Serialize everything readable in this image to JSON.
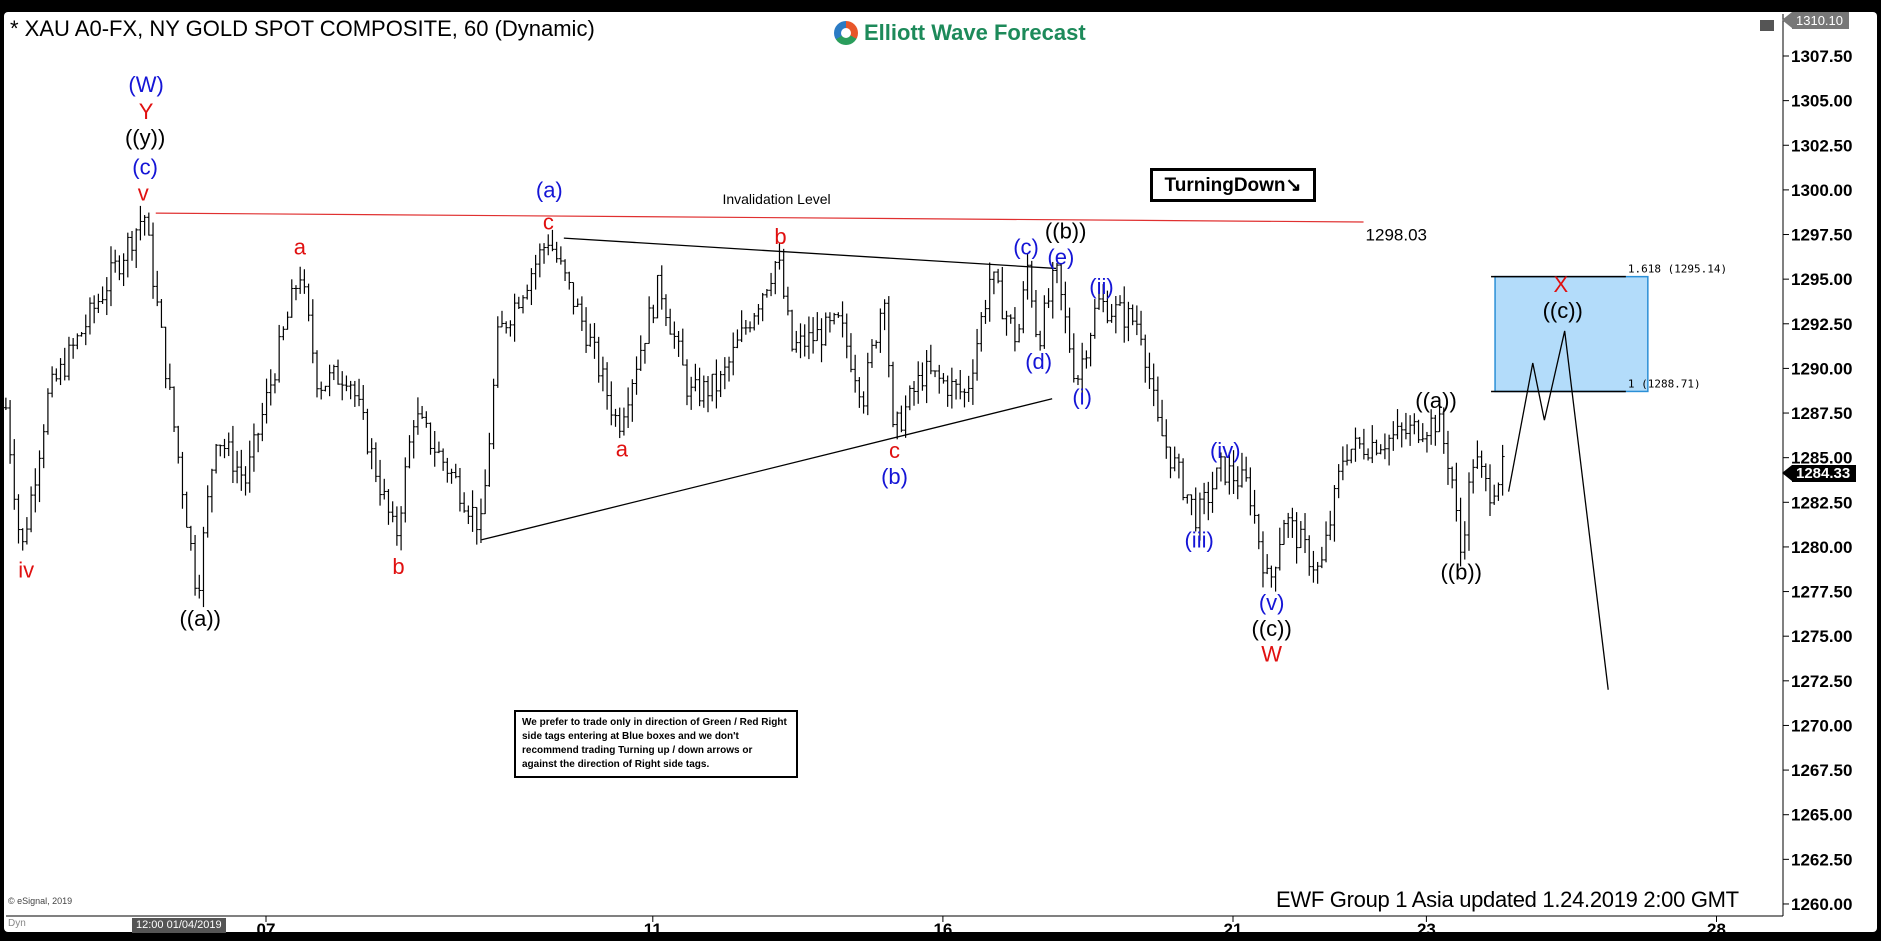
{
  "header": {
    "title": "* XAU A0-FX, NY GOLD SPOT COMPOSITE, 60 (Dynamic)",
    "logo": "Elliott Wave Forecast"
  },
  "turning_tag": "TurningDown↘",
  "note": "We prefer to trade only in direction of Green / Red Right side tags entering at Blue boxes and we don't recommend trading Turning up / down arrows or against the direction of Right side tags.",
  "footer": "EWF Group  1 Asia  updated 1.24.2019 2:00 GMT",
  "copyright": "© eSignal, 2019",
  "dyn_label": "Dyn",
  "time_tag": "12:00 01/04/2019",
  "current_price": "1284.33",
  "top_price": "1310.10",
  "colors": {
    "blue": "#1515d6",
    "red": "#e01010",
    "black": "#000000",
    "box": "#b3dcfa",
    "box_border": "#2b8fd6",
    "invalidation": "#e03030"
  },
  "chart_data": {
    "type": "ohlc",
    "title": "* XAU A0-FX, NY GOLD SPOT COMPOSITE, 60 (Dynamic)",
    "x_unit": "trading days from Jan 7",
    "x_ticks": [
      {
        "t": 0,
        "label": "07"
      },
      {
        "t": 4,
        "label": "11"
      },
      {
        "t": 7,
        "label": "16"
      },
      {
        "t": 10,
        "label": "21"
      },
      {
        "t": 12,
        "label": "23"
      },
      {
        "t": 15,
        "label": "28"
      }
    ],
    "y_ticks": [
      "1307.50",
      "1305.00",
      "1302.50",
      "1300.00",
      "1297.50",
      "1295.00",
      "1292.50",
      "1290.00",
      "1287.50",
      "1285.00",
      "1282.50",
      "1280.00",
      "1277.50",
      "1275.00",
      "1272.50",
      "1270.00",
      "1267.50",
      "1265.00",
      "1262.50",
      "1260.00"
    ],
    "ylim": [
      1258.5,
      1310.1
    ],
    "price_path": [
      [
        -2.69,
        1287.8
      ],
      [
        -2.53,
        1279.6
      ],
      [
        -2.25,
        1288.5
      ],
      [
        -1.26,
        1298.7
      ],
      [
        -0.71,
        1277.4
      ],
      [
        -0.52,
        1286.4
      ],
      [
        -0.21,
        1283.7
      ],
      [
        0.35,
        1295.5
      ],
      [
        0.54,
        1289.1
      ],
      [
        0.85,
        1289.8
      ],
      [
        1.34,
        1280.4
      ],
      [
        1.53,
        1287.4
      ],
      [
        1.96,
        1283.7
      ],
      [
        2.23,
        1281.0
      ],
      [
        2.4,
        1291.8
      ],
      [
        2.92,
        1297.3
      ],
      [
        3.33,
        1291.8
      ],
      [
        3.64,
        1286.8
      ],
      [
        4.07,
        1294.8
      ],
      [
        4.38,
        1288.5
      ],
      [
        4.69,
        1289.1
      ],
      [
        5.29,
        1296.2
      ],
      [
        5.44,
        1291.1
      ],
      [
        5.93,
        1292.5
      ],
      [
        6.18,
        1288.5
      ],
      [
        6.41,
        1294.8
      ],
      [
        6.47,
        1286.1
      ],
      [
        6.8,
        1289.8
      ],
      [
        7.24,
        1288.5
      ],
      [
        7.49,
        1295.2
      ],
      [
        7.77,
        1291.5
      ],
      [
        7.88,
        1295.9
      ],
      [
        7.98,
        1291.5
      ],
      [
        8.17,
        1295.4
      ],
      [
        8.38,
        1289.3
      ],
      [
        8.6,
        1293.7
      ],
      [
        9.04,
        1292.5
      ],
      [
        9.22,
        1286.8
      ],
      [
        9.63,
        1281.6
      ],
      [
        9.88,
        1284.4
      ],
      [
        10.16,
        1283.4
      ],
      [
        10.37,
        1277.7
      ],
      [
        10.53,
        1281.7
      ],
      [
        10.9,
        1278.5
      ],
      [
        11.15,
        1285.4
      ],
      [
        11.64,
        1286.1
      ],
      [
        12.12,
        1287.1
      ],
      [
        12.26,
        1284.1
      ],
      [
        12.35,
        1279.6
      ],
      [
        12.49,
        1285.1
      ],
      [
        12.64,
        1283.1
      ],
      [
        12.79,
        1284.3
      ]
    ],
    "projection": [
      [
        12.85,
        1283.1
      ],
      [
        13.1,
        1290.3
      ],
      [
        13.22,
        1287.1
      ],
      [
        13.43,
        1292.1
      ],
      [
        13.88,
        1272.0
      ]
    ],
    "invalidation": {
      "label": "Invalidation Level",
      "value_label": "1298.03",
      "from": [
        -1.14,
        1298.7
      ],
      "to": [
        11.35,
        1298.2
      ]
    },
    "triangle": {
      "upper": [
        [
          3.08,
          1297.3
        ],
        [
          8.17,
          1295.6
        ]
      ],
      "lower": [
        [
          2.23,
          1280.4
        ],
        [
          8.13,
          1288.3
        ]
      ]
    },
    "blue_box": {
      "t": [
        12.71,
        14.29
      ],
      "p": [
        1288.71,
        1295.14
      ],
      "upper_label": "1.618 (1295.14)",
      "lower_label": "1 (1288.71)"
    },
    "labels": [
      {
        "text": "(W)",
        "t": -1.24,
        "p": 1305.8,
        "c": "blue"
      },
      {
        "text": "Y",
        "t": -1.24,
        "p": 1304.3,
        "c": "red"
      },
      {
        "text": "((y))",
        "t": -1.25,
        "p": 1303.0,
        "c": "black"
      },
      {
        "text": "(c)",
        "t": -1.25,
        "p": 1301.2,
        "c": "blue"
      },
      {
        "text": "v",
        "t": -1.27,
        "p": 1299.9,
        "c": "red"
      },
      {
        "text": "iv",
        "t": -2.48,
        "p": 1278.6,
        "c": "red"
      },
      {
        "text": "((a))",
        "t": -0.68,
        "p": 1275.9,
        "c": "black"
      },
      {
        "text": "a",
        "t": 0.35,
        "p": 1296.7,
        "c": "red"
      },
      {
        "text": "b",
        "t": 1.37,
        "p": 1278.8,
        "c": "red"
      },
      {
        "text": "(a)",
        "t": 2.93,
        "p": 1299.9,
        "c": "blue"
      },
      {
        "text": "c",
        "t": 2.92,
        "p": 1298.1,
        "c": "red"
      },
      {
        "text": "a",
        "t": 3.68,
        "p": 1285.4,
        "c": "red"
      },
      {
        "text": "b",
        "t": 5.32,
        "p": 1297.3,
        "c": "red"
      },
      {
        "text": "c",
        "t": 6.5,
        "p": 1285.3,
        "c": "red"
      },
      {
        "text": "(b)",
        "t": 6.5,
        "p": 1283.9,
        "c": "blue"
      },
      {
        "text": "(c)",
        "t": 7.86,
        "p": 1296.7,
        "c": "blue"
      },
      {
        "text": "((b))",
        "t": 8.27,
        "p": 1297.6,
        "c": "black"
      },
      {
        "text": "(e)",
        "t": 8.22,
        "p": 1296.4,
        "c": "blue"
      },
      {
        "text": "(d)",
        "t": 7.99,
        "p": 1290.3,
        "c": "blue"
      },
      {
        "text": "(i)",
        "t": 8.44,
        "p": 1288.3,
        "c": "blue"
      },
      {
        "text": "(ii)",
        "t": 8.64,
        "p": 1294.5,
        "c": "blue"
      },
      {
        "text": "(iii)",
        "t": 9.65,
        "p": 1280.3,
        "c": "blue"
      },
      {
        "text": "(iv)",
        "t": 9.92,
        "p": 1285.3,
        "c": "blue"
      },
      {
        "text": "(v)",
        "t": 10.4,
        "p": 1276.8,
        "c": "blue"
      },
      {
        "text": "((c))",
        "t": 10.4,
        "p": 1275.4,
        "c": "black"
      },
      {
        "text": "W",
        "t": 10.4,
        "p": 1273.9,
        "c": "red"
      },
      {
        "text": "((a))",
        "t": 12.1,
        "p": 1288.1,
        "c": "black"
      },
      {
        "text": "((b))",
        "t": 12.36,
        "p": 1278.5,
        "c": "black"
      },
      {
        "text": "X",
        "t": 13.39,
        "p": 1294.6,
        "c": "red"
      },
      {
        "text": "((c))",
        "t": 13.41,
        "p": 1293.3,
        "c": "black"
      }
    ]
  }
}
